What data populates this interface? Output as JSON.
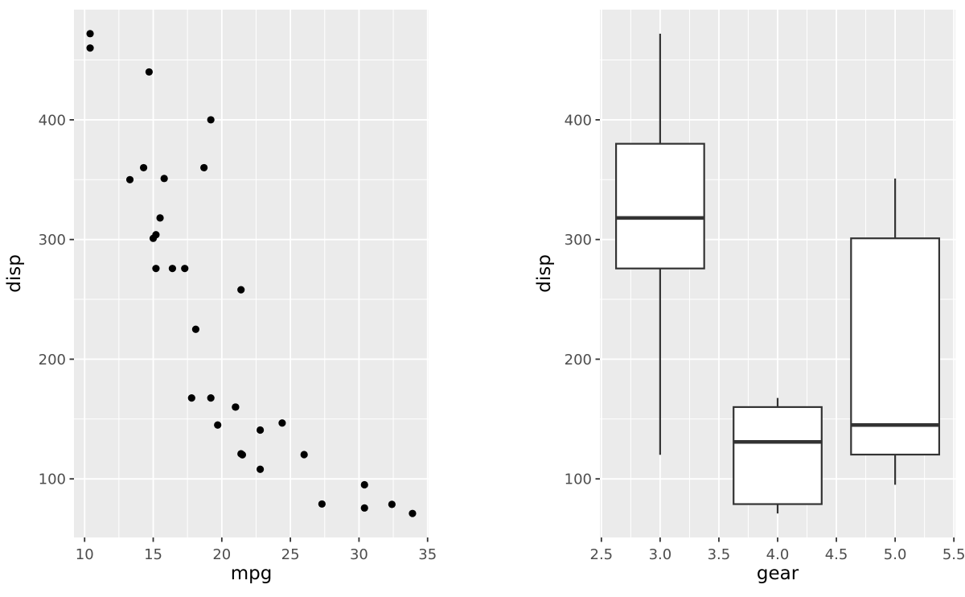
{
  "figure": {
    "background_color": "#FFFFFF",
    "panel_background_color": "#EBEBEB",
    "grid_color": "#FFFFFF",
    "tick_mark_color": "#333333",
    "tick_label_color": "#4D4D4D",
    "axis_title_color": "#000000",
    "point_color": "#000000",
    "box_stroke_color": "#333333",
    "box_fill_color": "#FFFFFF"
  },
  "chart_data": [
    {
      "type": "scatter",
      "title": "",
      "xlabel": "mpg",
      "ylabel": "disp",
      "xlim": [
        9.225,
        35.075
      ],
      "ylim": [
        51.05,
        492.05
      ],
      "x_ticks": [
        10,
        15,
        20,
        25,
        30,
        35
      ],
      "x_tick_labels": [
        "10",
        "15",
        "20",
        "25",
        "30",
        "35"
      ],
      "x_minor_breaks": [
        12.5,
        17.5,
        22.5,
        27.5,
        32.5
      ],
      "y_ticks": [
        100,
        200,
        300,
        400
      ],
      "y_tick_labels": [
        "100",
        "200",
        "300",
        "400"
      ],
      "y_minor_breaks": [
        150,
        250,
        350,
        450
      ],
      "grid": true,
      "legend": "none",
      "points": [
        [
          21.0,
          160.0
        ],
        [
          21.0,
          160.0
        ],
        [
          22.8,
          108.0
        ],
        [
          21.4,
          258.0
        ],
        [
          18.7,
          360.0
        ],
        [
          18.1,
          225.0
        ],
        [
          14.3,
          360.0
        ],
        [
          24.4,
          146.7
        ],
        [
          22.8,
          140.8
        ],
        [
          19.2,
          167.6
        ],
        [
          17.8,
          167.6
        ],
        [
          16.4,
          275.8
        ],
        [
          17.3,
          275.8
        ],
        [
          15.2,
          275.8
        ],
        [
          10.4,
          472.0
        ],
        [
          10.4,
          460.0
        ],
        [
          14.7,
          440.0
        ],
        [
          32.4,
          78.7
        ],
        [
          30.4,
          75.7
        ],
        [
          33.9,
          71.1
        ],
        [
          21.5,
          120.1
        ],
        [
          15.5,
          318.0
        ],
        [
          15.2,
          304.0
        ],
        [
          13.3,
          350.0
        ],
        [
          19.2,
          400.0
        ],
        [
          27.3,
          79.0
        ],
        [
          26.0,
          120.3
        ],
        [
          30.4,
          95.1
        ],
        [
          15.8,
          351.0
        ],
        [
          19.7,
          145.0
        ],
        [
          15.0,
          301.0
        ],
        [
          21.4,
          121.0
        ]
      ]
    },
    {
      "type": "boxplot",
      "title": "",
      "xlabel": "gear",
      "ylabel": "disp",
      "xlim": [
        2.4875,
        5.5125
      ],
      "ylim": [
        51.05,
        492.05
      ],
      "x_ticks": [
        2.5,
        3.0,
        3.5,
        4.0,
        4.5,
        5.0,
        5.5
      ],
      "x_tick_labels": [
        "2.5",
        "3.0",
        "3.5",
        "4.0",
        "4.5",
        "5.0",
        "5.5"
      ],
      "x_minor_breaks": [
        2.75,
        3.25,
        3.75,
        4.25,
        4.75,
        5.25
      ],
      "y_ticks": [
        100,
        200,
        300,
        400
      ],
      "y_tick_labels": [
        "100",
        "200",
        "300",
        "400"
      ],
      "y_minor_breaks": [
        150,
        250,
        350,
        450
      ],
      "grid": true,
      "legend": "none",
      "boxes": [
        {
          "x": 3,
          "box_width": 0.75,
          "whisker_low": 120.1,
          "q1": 275.8,
          "median": 318.0,
          "q3": 380.0,
          "whisker_high": 472.0,
          "outliers": []
        },
        {
          "x": 4,
          "box_width": 0.75,
          "whisker_low": 71.1,
          "q1": 78.925,
          "median": 130.9,
          "q3": 160.0,
          "whisker_high": 167.6,
          "outliers": []
        },
        {
          "x": 5,
          "box_width": 0.75,
          "whisker_low": 95.1,
          "q1": 120.3,
          "median": 145.0,
          "q3": 301.0,
          "whisker_high": 351.0,
          "outliers": []
        }
      ]
    }
  ]
}
